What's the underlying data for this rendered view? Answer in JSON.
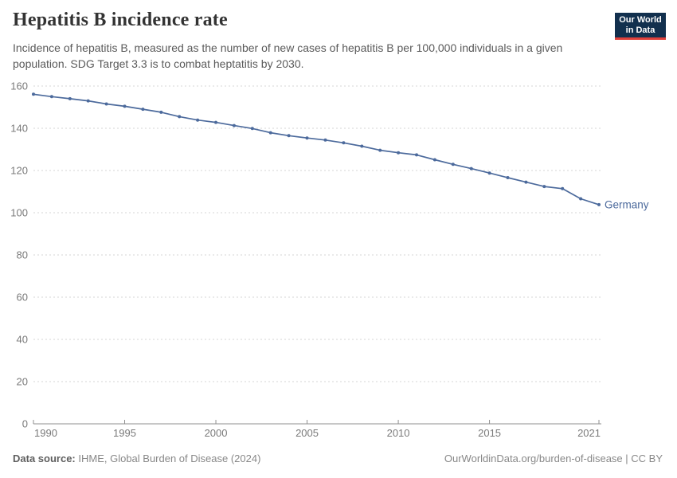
{
  "header": {
    "title": "Hepatitis B incidence rate",
    "subtitle": "Incidence of hepatitis B, measured as the number of new cases of hepatitis B per 100,000 individuals in a given population. SDG Target 3.3 is to combat heptatitis by 2030.",
    "logo": {
      "line1": "Our World",
      "line2": "in Data"
    }
  },
  "chart_data": {
    "type": "line",
    "title": "Hepatitis B incidence rate",
    "x": [
      1990,
      1991,
      1992,
      1993,
      1994,
      1995,
      1996,
      1997,
      1998,
      1999,
      2000,
      2001,
      2002,
      2003,
      2004,
      2005,
      2006,
      2007,
      2008,
      2009,
      2010,
      2011,
      2012,
      2013,
      2014,
      2015,
      2016,
      2017,
      2018,
      2019,
      2020,
      2021
    ],
    "series": [
      {
        "name": "Germany",
        "color": "#4C6A9C",
        "values": [
          156.1,
          155.0,
          154.0,
          153.0,
          151.5,
          150.4,
          149.0,
          147.6,
          145.5,
          143.9,
          142.8,
          141.3,
          139.9,
          137.9,
          136.5,
          135.4,
          134.4,
          133.1,
          131.5,
          129.6,
          128.4,
          127.4,
          125.1,
          122.9,
          120.9,
          118.8,
          116.6,
          114.5,
          112.4,
          111.4,
          106.6,
          103.8
        ]
      }
    ],
    "xlabel": "",
    "ylabel": "",
    "ylim": [
      0,
      160
    ],
    "xlim": [
      1990,
      2021
    ],
    "y_ticks": [
      0,
      20,
      40,
      60,
      80,
      100,
      120,
      140,
      160
    ],
    "x_ticks": [
      1990,
      1995,
      2000,
      2005,
      2010,
      2015,
      2021
    ],
    "grid": "horizontal-dashed",
    "legend_position": "end-of-line-label"
  },
  "colors": {
    "line": "#4C6A9C",
    "grid": "#d5d5d5",
    "axis": "#8f8f8f",
    "tick_text": "#7a7a7a",
    "title_text": "#333333",
    "subtitle_text": "#5a5a5a",
    "footer_text": "#888888",
    "logo_bg": "#12304e",
    "logo_stripe": "#e0403a"
  },
  "footer": {
    "source_label": "Data source:",
    "source_value": " IHME, Global Burden of Disease (2024)",
    "url": "OurWorldinData.org/burden-of-disease",
    "separator": " | ",
    "license": "CC BY"
  }
}
